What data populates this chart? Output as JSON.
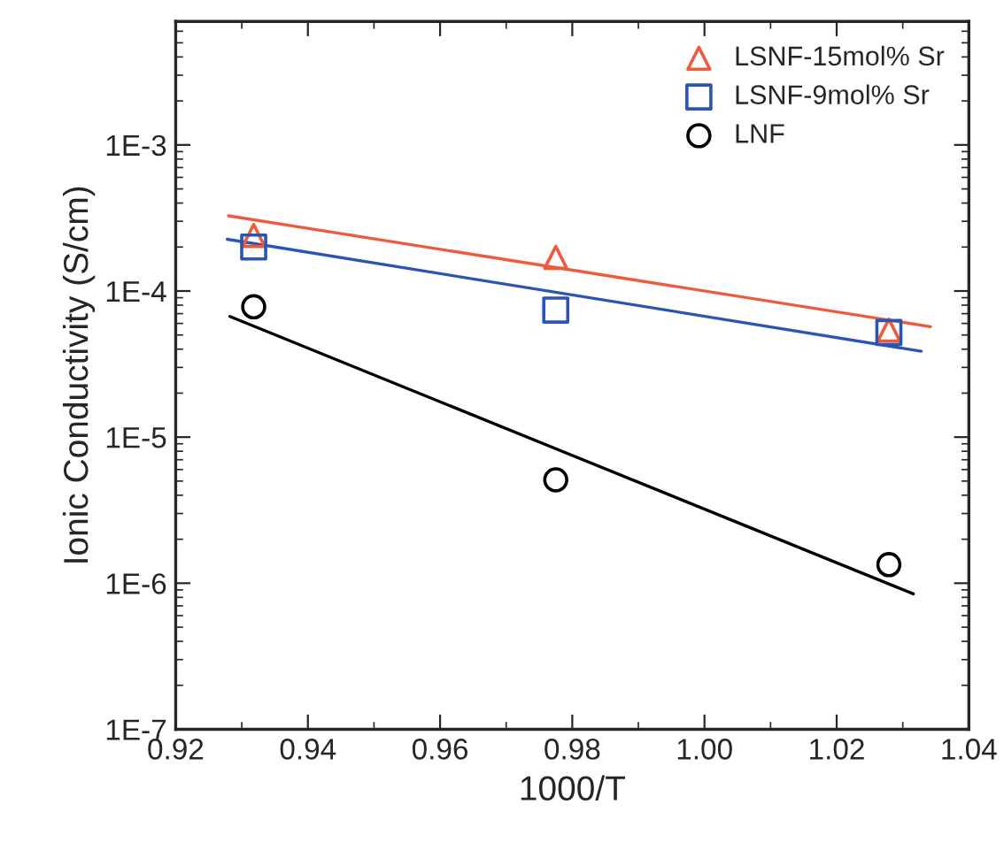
{
  "chart_data": {
    "type": "scatter",
    "xlabel": "1000/T",
    "ylabel": "Ionic Conductivity (S/cm)",
    "x": [
      0.9318,
      0.9775,
      1.0279
    ],
    "series": [
      {
        "name": "LSNF-15mol% Sr",
        "color": "#f05a3c",
        "marker": "triangle",
        "values": [
          0.00024,
          0.00017,
          5.4e-05
        ]
      },
      {
        "name": "LSNF-9mol% Sr",
        "color": "#2a55b0",
        "marker": "square",
        "values": [
          0.0002,
          7.4e-05,
          5.2e-05
        ]
      },
      {
        "name": "LNF",
        "color": "#000000",
        "marker": "circle",
        "values": [
          7.8e-05,
          5.1e-06,
          1.34e-06
        ]
      },
      {
        "type": "line",
        "color": "#f05a3c",
        "marker": "none",
        "x": [
          0.928,
          1.0342
        ],
        "values": [
          0.000327,
          5.7e-05
        ]
      },
      {
        "type": "line",
        "color": "#2a55b0",
        "marker": "none",
        "x": [
          0.9278,
          1.0328
        ],
        "values": [
          0.000226,
          3.87e-05
        ]
      },
      {
        "type": "line",
        "color": "#000000",
        "marker": "none",
        "x": [
          0.9282,
          1.0316
        ],
        "values": [
          6.7e-05,
          8.45e-07
        ]
      }
    ],
    "log": "y",
    "grid": false,
    "legend": "top right",
    "xlim": [
      0.92,
      1.04
    ],
    "xticks": [
      {
        "value": 0.92,
        "label": "0.92"
      },
      {
        "value": 0.94,
        "label": "0.94"
      },
      {
        "value": 0.96,
        "label": "0.96"
      },
      {
        "value": 0.98,
        "label": "0.98"
      },
      {
        "value": 1.0,
        "label": "1.00"
      },
      {
        "value": 1.02,
        "label": "1.02"
      },
      {
        "value": 1.04,
        "label": "1.04"
      }
    ],
    "ylim": [
      1e-07,
      0.007
    ],
    "yticks": [
      {
        "value": 1e-07,
        "label": "1E-7"
      },
      {
        "value": 1e-06,
        "label": "1E-6"
      },
      {
        "value": 1e-05,
        "label": "1E-5"
      },
      {
        "value": 0.0001,
        "label": "1E-4"
      },
      {
        "value": 0.001,
        "label": "1E-3"
      }
    ]
  }
}
